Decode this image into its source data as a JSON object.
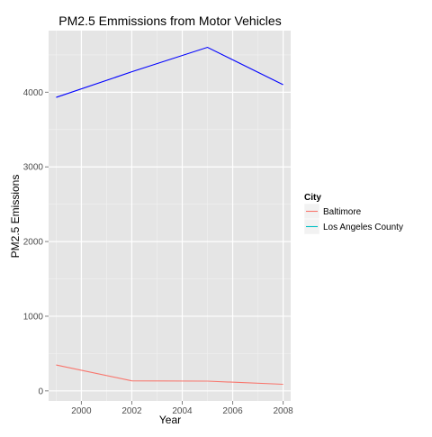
{
  "chart_data": {
    "type": "line",
    "title": "PM2.5 Emmissions from Motor Vehicles",
    "xlabel": "Year",
    "ylabel": "PM2.5 Emissions",
    "x": [
      1999,
      2002,
      2005,
      2008
    ],
    "xlim": [
      1998.7,
      2008.3
    ],
    "ylim": [
      -135,
      4825
    ],
    "xticks": [
      2000,
      2002,
      2004,
      2006,
      2008
    ],
    "yticks": [
      0,
      1000,
      2000,
      3000,
      4000
    ],
    "grid": true,
    "legend": {
      "title": "City",
      "placement": "right"
    },
    "series": [
      {
        "name": "Baltimore",
        "color": "#F8766D",
        "values": [
          346.8,
          134.3,
          130.4,
          88.3
        ]
      },
      {
        "name": "Los Angeles County",
        "color": "#0000FF",
        "values": [
          3931.1,
          4274.0,
          4601.4,
          4101.3
        ]
      }
    ]
  },
  "colors": {
    "panel_background": "#E5E5E5",
    "grid_major": "#FFFFFF",
    "grid_minor": "#F2F2F2",
    "legend_key_background": "#F2F2F2",
    "los_angeles_legend_key": "#00BFC4"
  }
}
